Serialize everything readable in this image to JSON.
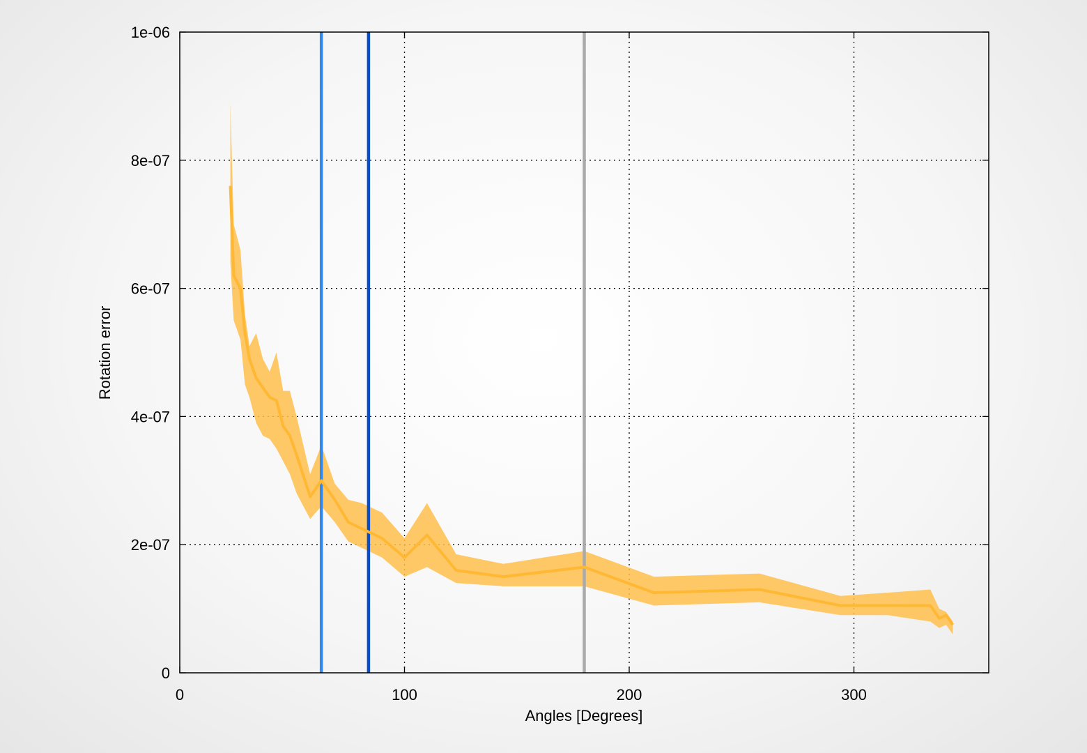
{
  "chart_data": {
    "type": "line",
    "xlabel": "Angles [Degrees]",
    "ylabel": "Rotation error",
    "xlim": [
      0,
      360
    ],
    "ylim": [
      0,
      1e-06
    ],
    "x_ticks": [
      0,
      100,
      200,
      300
    ],
    "x_tick_labels": [
      "0",
      "100",
      "200",
      "300"
    ],
    "y_ticks": [
      0,
      2e-07,
      4e-07,
      6e-07,
      8e-07,
      1e-06
    ],
    "y_tick_labels": [
      "0",
      "2e-07",
      "4e-07",
      "6e-07",
      "8e-07",
      "1e-06"
    ],
    "grid": true,
    "series": [
      {
        "color": "#ffb833",
        "band_color": "#ffc04d",
        "x": [
          22.5,
          24,
          27,
          29,
          31,
          34,
          37,
          40,
          43,
          46,
          49,
          52,
          58,
          63,
          69,
          75,
          81,
          90,
          100,
          110,
          123,
          144,
          180,
          211,
          258,
          294,
          315,
          334,
          338,
          341,
          344
        ],
        "y": [
          7.6e-07,
          6.2e-07,
          6e-07,
          5.3e-07,
          4.9e-07,
          4.6e-07,
          4.45e-07,
          4.3e-07,
          4.25e-07,
          3.85e-07,
          3.7e-07,
          3.4e-07,
          2.75e-07,
          3e-07,
          2.7e-07,
          2.35e-07,
          2.25e-07,
          2.1e-07,
          1.8e-07,
          2.15e-07,
          1.6e-07,
          1.5e-07,
          1.65e-07,
          1.25e-07,
          1.3e-07,
          1.05e-07,
          1.05e-07,
          1.05e-07,
          8.5e-08,
          9e-08,
          7.5e-08
        ],
        "y_upper": [
          8.9e-07,
          7e-07,
          6.6e-07,
          5.6e-07,
          5.1e-07,
          5.3e-07,
          4.9e-07,
          4.7e-07,
          5e-07,
          4.4e-07,
          4.4e-07,
          4e-07,
          3.1e-07,
          3.55e-07,
          2.95e-07,
          2.7e-07,
          2.65e-07,
          2.5e-07,
          2.1e-07,
          2.65e-07,
          1.85e-07,
          1.7e-07,
          1.9e-07,
          1.5e-07,
          1.55e-07,
          1.2e-07,
          1.25e-07,
          1.3e-07,
          1e-07,
          9.5e-08,
          8e-08
        ],
        "y_lower": [
          6.4e-07,
          5.5e-07,
          5.2e-07,
          4.5e-07,
          4.3e-07,
          3.9e-07,
          3.7e-07,
          3.65e-07,
          3.5e-07,
          3.3e-07,
          3.1e-07,
          2.8e-07,
          2.4e-07,
          2.6e-07,
          2.35e-07,
          2.05e-07,
          1.95e-07,
          1.8e-07,
          1.5e-07,
          1.65e-07,
          1.4e-07,
          1.35e-07,
          1.35e-07,
          1.05e-07,
          1.1e-07,
          9e-08,
          9e-08,
          8e-08,
          7e-08,
          7.5e-08,
          6e-08
        ]
      }
    ],
    "vertical_lines": [
      {
        "x": 63,
        "color": "#3388ee"
      },
      {
        "x": 84,
        "color": "#0a4cc4"
      },
      {
        "x": 180,
        "color": "#aaaaaa"
      }
    ]
  }
}
